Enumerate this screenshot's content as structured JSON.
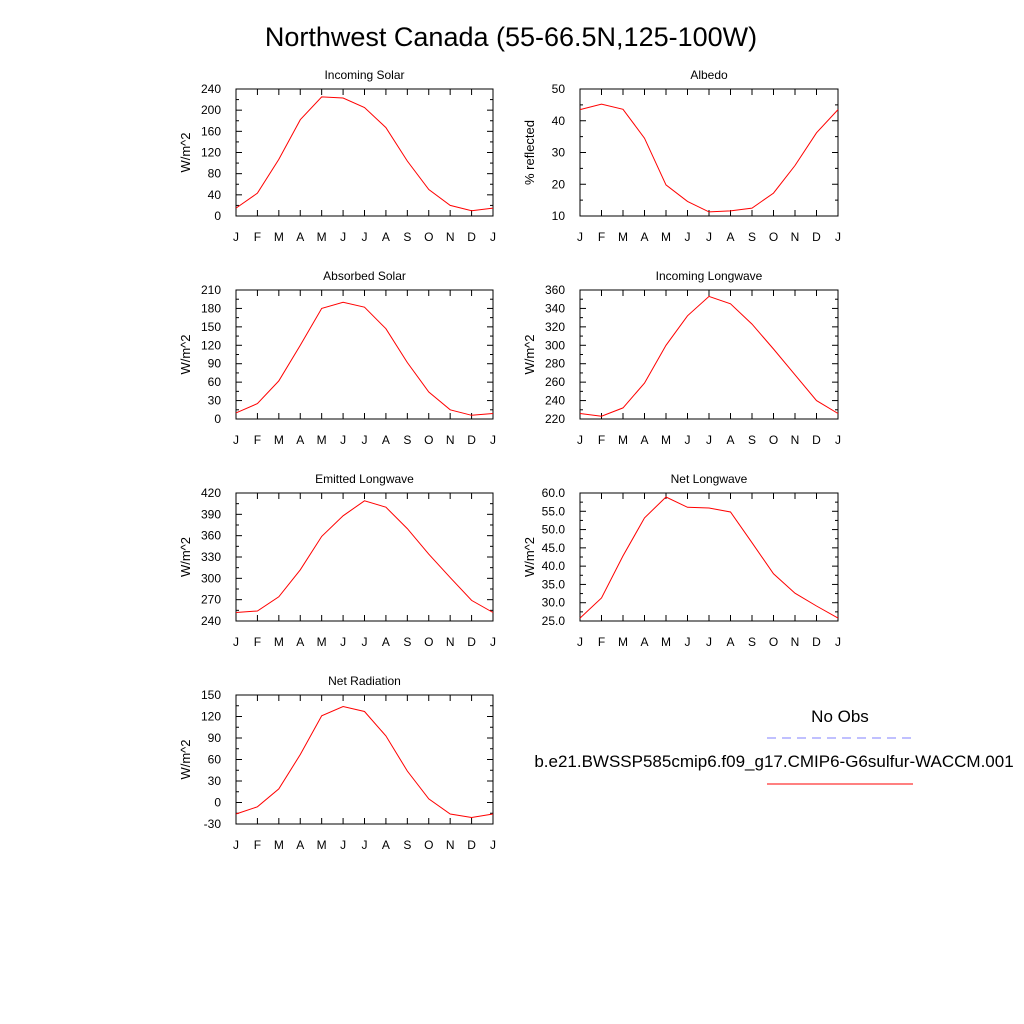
{
  "title": "Northwest Canada (55-66.5N,125-100W)",
  "line_color": "#ff0000",
  "obs_color": "#8080ff",
  "legend": {
    "obs_label": "No Obs",
    "model_label": "b.e21.BWSSP585cmip6.f09_g17.CMIP6-G6sulfur-WACCM.001"
  },
  "chart_data": [
    {
      "type": "line",
      "title": "Incoming Solar",
      "ylabel": "W/m^2",
      "x": [
        "J",
        "F",
        "M",
        "A",
        "M",
        "J",
        "J",
        "A",
        "S",
        "O",
        "N",
        "D",
        "J"
      ],
      "ylim": [
        0,
        240
      ],
      "yticks": [
        "0",
        "40",
        "80",
        "120",
        "160",
        "200",
        "240"
      ],
      "values": [
        15,
        43,
        107,
        182,
        225,
        223,
        205,
        167,
        104,
        50,
        20,
        10,
        15
      ]
    },
    {
      "type": "line",
      "title": "Albedo",
      "ylabel": "% reflected",
      "x": [
        "J",
        "F",
        "M",
        "A",
        "M",
        "J",
        "J",
        "A",
        "S",
        "O",
        "N",
        "D",
        "J"
      ],
      "ylim": [
        10,
        50
      ],
      "yticks": [
        "10",
        "20",
        "30",
        "40",
        "50"
      ],
      "values": [
        43.5,
        45.2,
        43.6,
        34.5,
        19.8,
        14.6,
        11.3,
        11.6,
        12.5,
        17.2,
        25.9,
        36.2,
        43.5
      ]
    },
    {
      "type": "line",
      "title": "Absorbed Solar",
      "ylabel": "W/m^2",
      "x": [
        "J",
        "F",
        "M",
        "A",
        "M",
        "J",
        "J",
        "A",
        "S",
        "O",
        "N",
        "D",
        "J"
      ],
      "ylim": [
        0,
        210
      ],
      "yticks": [
        "0",
        "30",
        "60",
        "90",
        "120",
        "150",
        "180",
        "210"
      ],
      "values": [
        10,
        25,
        62,
        120,
        180,
        190,
        182,
        147,
        92,
        44,
        15,
        6,
        9
      ]
    },
    {
      "type": "line",
      "title": "Incoming Longwave",
      "ylabel": "W/m^2",
      "x": [
        "J",
        "F",
        "M",
        "A",
        "M",
        "J",
        "J",
        "A",
        "S",
        "O",
        "N",
        "D",
        "J"
      ],
      "ylim": [
        220,
        360
      ],
      "yticks": [
        "220",
        "240",
        "260",
        "280",
        "300",
        "320",
        "340",
        "360"
      ],
      "values": [
        226,
        223,
        232,
        259,
        300,
        332,
        353,
        345,
        323,
        296,
        268,
        240,
        226
      ]
    },
    {
      "type": "line",
      "title": "Emitted Longwave",
      "ylabel": "W/m^2",
      "x": [
        "J",
        "F",
        "M",
        "A",
        "M",
        "J",
        "J",
        "A",
        "S",
        "O",
        "N",
        "D",
        "J"
      ],
      "ylim": [
        240,
        420
      ],
      "yticks": [
        "240",
        "270",
        "300",
        "330",
        "360",
        "390",
        "420"
      ],
      "values": [
        252,
        254,
        274,
        312,
        359,
        388,
        409,
        400,
        370,
        334,
        301,
        269,
        252
      ]
    },
    {
      "type": "line",
      "title": "Net Longwave",
      "ylabel": "W/m^2",
      "x": [
        "J",
        "F",
        "M",
        "A",
        "M",
        "J",
        "J",
        "A",
        "S",
        "O",
        "N",
        "D",
        "J"
      ],
      "ylim": [
        25,
        60
      ],
      "yticks": [
        "25.0",
        "30.0",
        "35.0",
        "40.0",
        "45.0",
        "50.0",
        "55.0",
        "60.0"
      ],
      "values": [
        25.8,
        31.3,
        42.8,
        53.2,
        58.9,
        56.1,
        55.9,
        54.8,
        46.4,
        37.9,
        32.6,
        29.1,
        25.8
      ]
    },
    {
      "type": "line",
      "title": "Net Radiation",
      "ylabel": "W/m^2",
      "x": [
        "J",
        "F",
        "M",
        "A",
        "M",
        "J",
        "J",
        "A",
        "S",
        "O",
        "N",
        "D",
        "J"
      ],
      "ylim": [
        -30,
        150
      ],
      "yticks": [
        "-30",
        "0",
        "30",
        "60",
        "90",
        "120",
        "150"
      ],
      "values": [
        -16,
        -6,
        19,
        67,
        121,
        134,
        127,
        93,
        44,
        5,
        -16,
        -21,
        -16
      ]
    }
  ]
}
